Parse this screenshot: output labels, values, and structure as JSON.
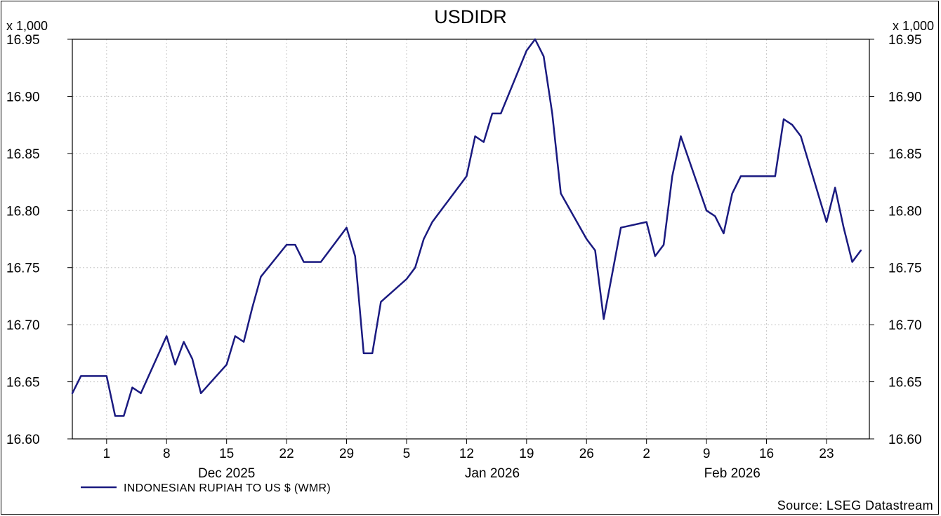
{
  "chart_data": {
    "type": "line",
    "title": "USDIDR",
    "y_unit_label": "x 1,000",
    "ylim": [
      16.6,
      16.95
    ],
    "y_ticks": [
      "16.60",
      "16.65",
      "16.70",
      "16.75",
      "16.80",
      "16.85",
      "16.90",
      "16.95"
    ],
    "x_day_ticks": [
      {
        "label": "1",
        "date": "2025-12-01"
      },
      {
        "label": "8",
        "date": "2025-12-08"
      },
      {
        "label": "15",
        "date": "2025-12-15"
      },
      {
        "label": "22",
        "date": "2025-12-22"
      },
      {
        "label": "29",
        "date": "2025-12-29"
      },
      {
        "label": "5",
        "date": "2026-01-05"
      },
      {
        "label": "12",
        "date": "2026-01-12"
      },
      {
        "label": "19",
        "date": "2026-01-19"
      },
      {
        "label": "26",
        "date": "2026-01-26"
      },
      {
        "label": "2",
        "date": "2026-02-02"
      },
      {
        "label": "9",
        "date": "2026-02-09"
      },
      {
        "label": "16",
        "date": "2026-02-16"
      },
      {
        "label": "23",
        "date": "2026-02-23"
      }
    ],
    "x_month_labels": [
      {
        "label": "Dec 2025",
        "date": "2025-12-15"
      },
      {
        "label": "Jan 2026",
        "date": "2026-01-15"
      },
      {
        "label": "Feb 2026",
        "date": "2026-02-12"
      }
    ],
    "x_range": [
      "2025-11-27",
      "2026-02-28"
    ],
    "grid": true,
    "legend_position": "bottom-left",
    "series": [
      {
        "name": "INDONESIAN RUPIAH TO US $ (WMR)",
        "color": "#1a1a80",
        "points": [
          [
            "2025-11-27",
            16.64
          ],
          [
            "2025-11-28",
            16.655
          ],
          [
            "2025-12-01",
            16.655
          ],
          [
            "2025-12-02",
            16.62
          ],
          [
            "2025-12-03",
            16.62
          ],
          [
            "2025-12-04",
            16.645
          ],
          [
            "2025-12-05",
            16.64
          ],
          [
            "2025-12-08",
            16.69
          ],
          [
            "2025-12-09",
            16.665
          ],
          [
            "2025-12-10",
            16.685
          ],
          [
            "2025-12-11",
            16.67
          ],
          [
            "2025-12-12",
            16.64
          ],
          [
            "2025-12-15",
            16.665
          ],
          [
            "2025-12-16",
            16.69
          ],
          [
            "2025-12-17",
            16.685
          ],
          [
            "2025-12-18",
            16.715
          ],
          [
            "2025-12-19",
            16.742
          ],
          [
            "2025-12-22",
            16.77
          ],
          [
            "2025-12-23",
            16.77
          ],
          [
            "2025-12-24",
            16.755
          ],
          [
            "2025-12-25",
            16.755
          ],
          [
            "2025-12-26",
            16.755
          ],
          [
            "2025-12-29",
            16.785
          ],
          [
            "2025-12-30",
            16.76
          ],
          [
            "2025-12-31",
            16.675
          ],
          [
            "2026-01-01",
            16.675
          ],
          [
            "2026-01-02",
            16.72
          ],
          [
            "2026-01-05",
            16.74
          ],
          [
            "2026-01-06",
            16.75
          ],
          [
            "2026-01-07",
            16.775
          ],
          [
            "2026-01-08",
            16.79
          ],
          [
            "2026-01-09",
            16.8
          ],
          [
            "2026-01-12",
            16.83
          ],
          [
            "2026-01-13",
            16.865
          ],
          [
            "2026-01-14",
            16.86
          ],
          [
            "2026-01-15",
            16.885
          ],
          [
            "2026-01-16",
            16.885
          ],
          [
            "2026-01-19",
            16.94
          ],
          [
            "2026-01-20",
            16.95
          ],
          [
            "2026-01-21",
            16.935
          ],
          [
            "2026-01-22",
            16.885
          ],
          [
            "2026-01-23",
            16.815
          ],
          [
            "2026-01-26",
            16.775
          ],
          [
            "2026-01-27",
            16.765
          ],
          [
            "2026-01-28",
            16.705
          ],
          [
            "2026-01-29",
            16.745
          ],
          [
            "2026-01-30",
            16.785
          ],
          [
            "2026-02-02",
            16.79
          ],
          [
            "2026-02-03",
            16.76
          ],
          [
            "2026-02-04",
            16.77
          ],
          [
            "2026-02-05",
            16.83
          ],
          [
            "2026-02-06",
            16.865
          ],
          [
            "2026-02-09",
            16.8
          ],
          [
            "2026-02-10",
            16.795
          ],
          [
            "2026-02-11",
            16.78
          ],
          [
            "2026-02-12",
            16.815
          ],
          [
            "2026-02-13",
            16.83
          ],
          [
            "2026-02-16",
            16.83
          ],
          [
            "2026-02-17",
            16.83
          ],
          [
            "2026-02-18",
            16.88
          ],
          [
            "2026-02-19",
            16.875
          ],
          [
            "2026-02-20",
            16.865
          ],
          [
            "2026-02-23",
            16.79
          ],
          [
            "2026-02-24",
            16.82
          ],
          [
            "2026-02-25",
            16.785
          ],
          [
            "2026-02-26",
            16.755
          ],
          [
            "2026-02-27",
            16.765
          ]
        ]
      }
    ],
    "source": "Source: LSEG Datastream"
  }
}
